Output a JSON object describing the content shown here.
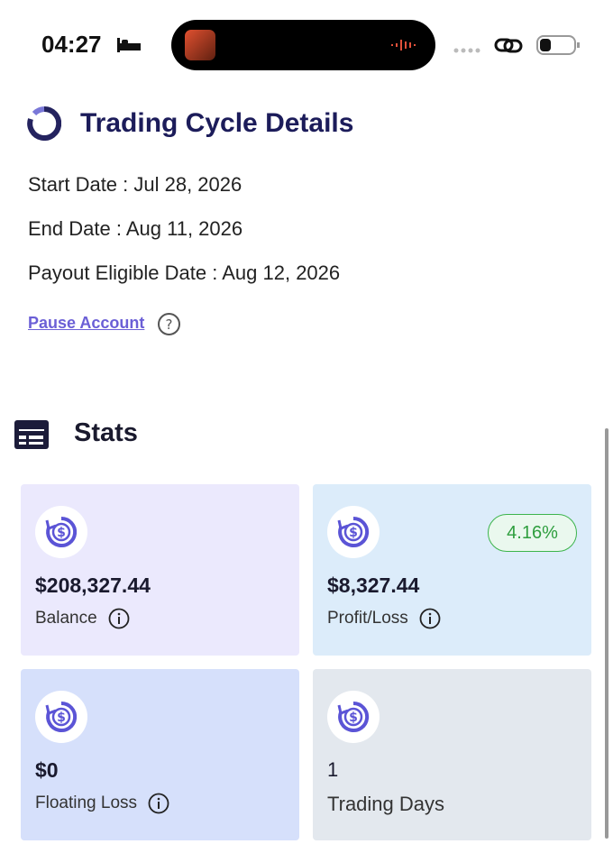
{
  "status_bar": {
    "time": "04:27"
  },
  "header": {
    "title": "Trading Cycle Details"
  },
  "details": [
    "Start Date : Jul 28, 2026",
    "End Date : Aug 11, 2026",
    "Payout Eligible Date : Aug 12, 2026"
  ],
  "pause_link": "Pause Account",
  "stats": {
    "title": "Stats",
    "cards": [
      {
        "value": "$208,327.44",
        "label": "Balance"
      },
      {
        "value": "$8,327.44",
        "label": "Profit/Loss",
        "badge": "4.16%"
      },
      {
        "value": "$0",
        "label": "Floating Loss"
      },
      {
        "value": "1",
        "label": "Trading Days"
      }
    ]
  }
}
